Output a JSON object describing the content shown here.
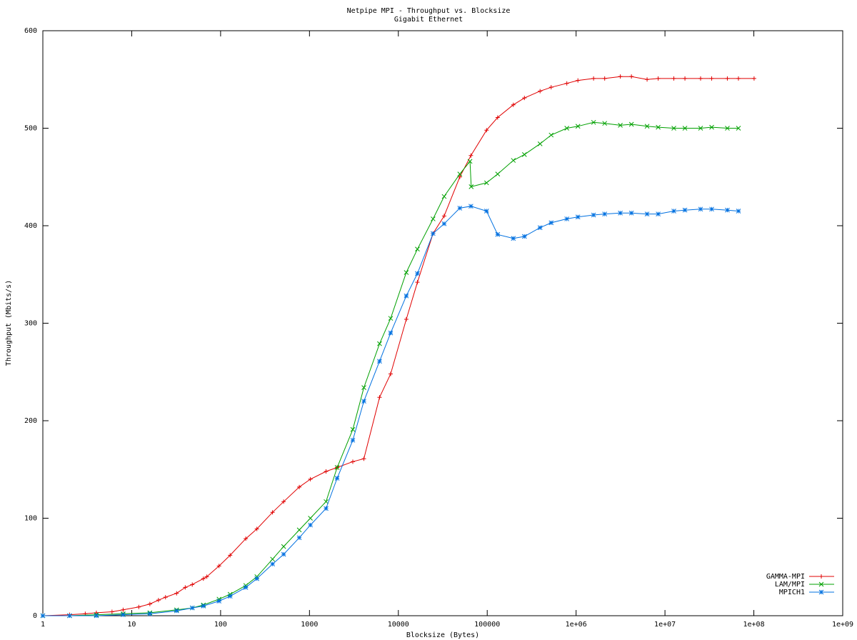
{
  "chart_data": {
    "type": "line",
    "title": "Netpipe MPI - Throughput vs. Blocksize",
    "subtitle": "Gigabit Ethernet",
    "x_label": "Blocksize (Bytes)",
    "y_label": "Throughput (Mbits/s)",
    "xscale": "log",
    "xlim": [
      1,
      1000000000
    ],
    "ylim": [
      0,
      600
    ],
    "xticks": [
      1,
      10,
      100,
      1000,
      10000,
      100000,
      {
        "value": 1000000,
        "label": "1e+06"
      },
      {
        "value": 10000000,
        "label": "1e+07"
      },
      {
        "value": 100000000,
        "label": "1e+08"
      },
      {
        "value": 1000000000,
        "label": "1e+09"
      }
    ],
    "yticks": [
      0,
      100,
      200,
      300,
      400,
      500,
      600
    ],
    "legend": "bottom-right",
    "series": [
      {
        "name": "GAMMA-MPI",
        "color": "#e00000",
        "marker": "plus",
        "x": [
          1,
          2,
          3,
          4,
          6,
          8,
          12,
          16,
          20,
          24,
          32,
          40,
          48,
          64,
          70,
          96,
          128,
          192,
          256,
          384,
          512,
          768,
          1024,
          1536,
          2048,
          3072,
          4096,
          6144,
          8192,
          12288,
          16384,
          24576,
          32768,
          49152,
          65536,
          98304,
          131072,
          196608,
          262144,
          393216,
          524288,
          786432,
          1048576,
          1572864,
          2097152,
          3145728,
          4194304,
          6291456,
          8388608,
          12582912,
          16777216,
          25165824,
          33554432,
          50331648,
          67108864,
          100663296
        ],
        "values": [
          0,
          1,
          2,
          3,
          4,
          6,
          9,
          12,
          16,
          19,
          23,
          29,
          32,
          38,
          40,
          51,
          62,
          79,
          89,
          106,
          117,
          132,
          140,
          148,
          152,
          158,
          161,
          224,
          248,
          304,
          342,
          392,
          410,
          450,
          472,
          498,
          511,
          524,
          531,
          538,
          542,
          546,
          549,
          551,
          551,
          553,
          553,
          550,
          551,
          551,
          551,
          551,
          551,
          551,
          551,
          551
        ]
      },
      {
        "name": "LAM/MPI",
        "color": "#00a000",
        "marker": "cross",
        "x": [
          1,
          2,
          4,
          8,
          16,
          32,
          48,
          64,
          96,
          128,
          192,
          256,
          384,
          512,
          768,
          1024,
          1536,
          2048,
          3072,
          4096,
          6144,
          8192,
          12288,
          16384,
          24576,
          32768,
          49152,
          64000,
          66000,
          98304,
          131072,
          196608,
          262144,
          393216,
          524288,
          786432,
          1048576,
          1572864,
          2097152,
          3145728,
          4194304,
          6291456,
          8388608,
          12582912,
          16777216,
          25165824,
          33554432,
          50331648,
          67108864
        ],
        "values": [
          0,
          0,
          1,
          2,
          3,
          6,
          8,
          11,
          17,
          22,
          31,
          40,
          58,
          71,
          88,
          100,
          117,
          152,
          191,
          234,
          279,
          305,
          352,
          376,
          407,
          430,
          453,
          466,
          440,
          444,
          453,
          467,
          473,
          484,
          493,
          500,
          502,
          506,
          505,
          503,
          504,
          502,
          501,
          500,
          500,
          500,
          501,
          500,
          500
        ]
      },
      {
        "name": "MPICH1",
        "color": "#0070e0",
        "marker": "star",
        "x": [
          1,
          2,
          4,
          8,
          16,
          32,
          48,
          64,
          96,
          128,
          192,
          256,
          384,
          512,
          768,
          1024,
          1536,
          2048,
          3072,
          4096,
          6144,
          8192,
          12288,
          16384,
          24576,
          32768,
          49152,
          65536,
          98304,
          131072,
          196608,
          262144,
          393216,
          524288,
          786432,
          1048576,
          1572864,
          2097152,
          3145728,
          4194304,
          6291456,
          8388608,
          12582912,
          16777216,
          25165824,
          33554432,
          50331648,
          67108864
        ],
        "values": [
          0,
          0,
          0,
          1,
          2,
          5,
          8,
          10,
          15,
          20,
          29,
          38,
          53,
          63,
          80,
          93,
          110,
          141,
          180,
          220,
          261,
          290,
          328,
          351,
          392,
          402,
          418,
          420,
          415,
          391,
          387,
          389,
          398,
          403,
          407,
          409,
          411,
          412,
          413,
          413,
          412,
          412,
          415,
          416,
          417,
          417,
          416,
          415
        ]
      }
    ]
  }
}
